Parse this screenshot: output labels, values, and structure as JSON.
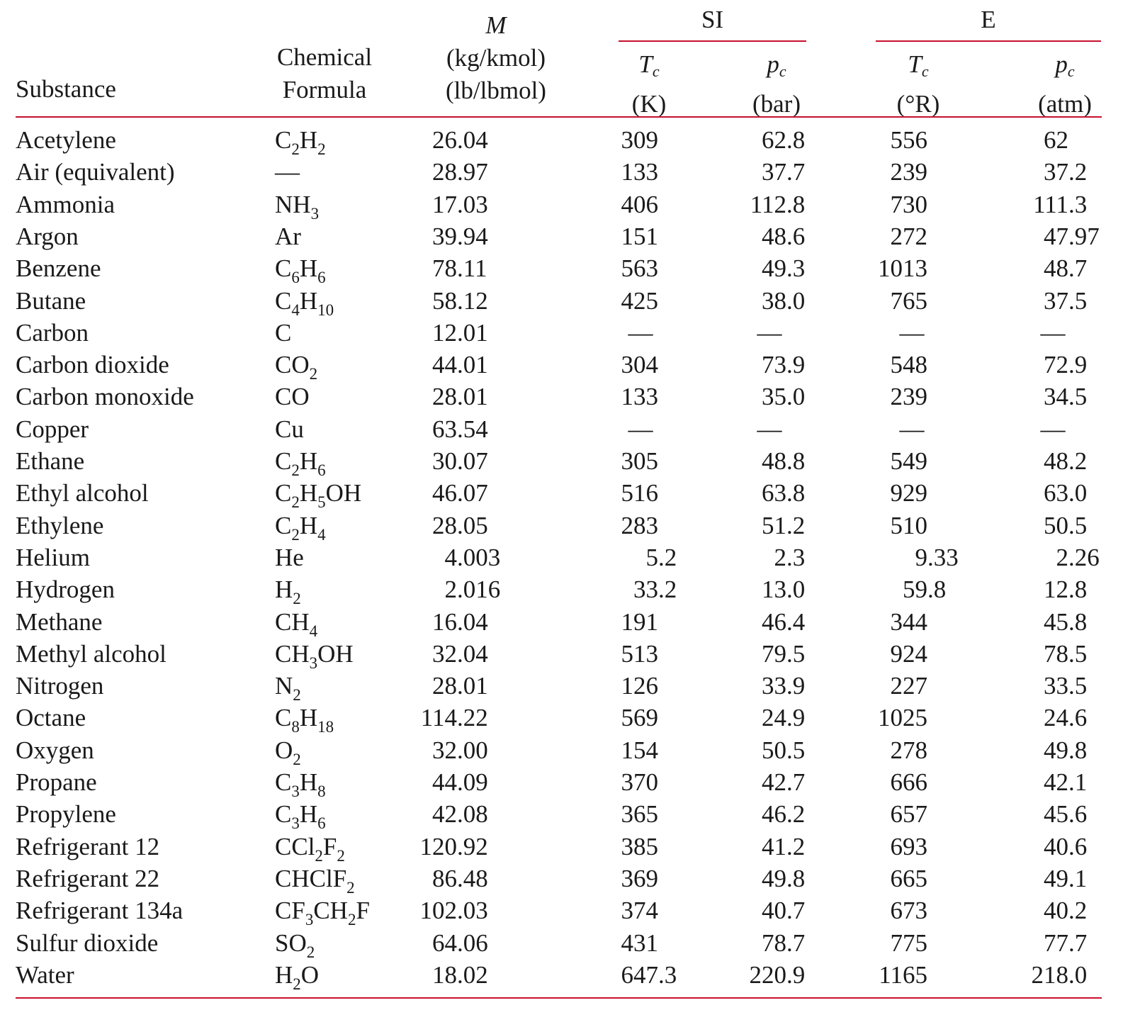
{
  "header": {
    "substance": "Substance",
    "formula_line1": "Chemical",
    "formula_line2": "Formula",
    "molar_symbol": "M",
    "molar_unit_si": "(kg/kmol)",
    "molar_unit_e": "(lb/lbmol)",
    "si_group": "SI",
    "e_group": "E",
    "tc_symbol": "T",
    "tc_sub": "c",
    "pc_symbol": "p",
    "pc_sub": "c",
    "tc_si_unit": "(K)",
    "pc_si_unit": "(bar)",
    "tc_e_unit": "(°R)",
    "pc_e_unit": "(atm)"
  },
  "colors": {
    "rule": "#c8102e",
    "text": "#1a1a1a"
  },
  "rows": [
    {
      "substance": "Acetylene",
      "formula": [
        [
          "C",
          ""
        ],
        [
          "2",
          "s"
        ],
        [
          "H",
          ""
        ],
        [
          "2",
          "s"
        ]
      ],
      "M": "26.04",
      "tc_si": "309",
      "pc_si": "62.8",
      "tc_e": "556",
      "pc_e": "62"
    },
    {
      "substance": "Air (equivalent)",
      "formula": [
        [
          "—",
          ""
        ]
      ],
      "M": "28.97",
      "tc_si": "133",
      "pc_si": "37.7",
      "tc_e": "239",
      "pc_e": "37.2"
    },
    {
      "substance": "Ammonia",
      "formula": [
        [
          "NH",
          ""
        ],
        [
          "3",
          "s"
        ]
      ],
      "M": "17.03",
      "tc_si": "406",
      "pc_si": "112.8",
      "tc_e": "730",
      "pc_e": "111.3"
    },
    {
      "substance": "Argon",
      "formula": [
        [
          "Ar",
          ""
        ]
      ],
      "M": "39.94",
      "tc_si": "151",
      "pc_si": "48.6",
      "tc_e": "272",
      "pc_e": "47.97"
    },
    {
      "substance": "Benzene",
      "formula": [
        [
          "C",
          ""
        ],
        [
          "6",
          "s"
        ],
        [
          "H",
          ""
        ],
        [
          "6",
          "s"
        ]
      ],
      "M": "78.11",
      "tc_si": "563",
      "pc_si": "49.3",
      "tc_e": "1013",
      "pc_e": "48.7"
    },
    {
      "substance": "Butane",
      "formula": [
        [
          "C",
          ""
        ],
        [
          "4",
          "s"
        ],
        [
          "H",
          ""
        ],
        [
          "10",
          "s"
        ]
      ],
      "M": "58.12",
      "tc_si": "425",
      "pc_si": "38.0",
      "tc_e": "765",
      "pc_e": "37.5"
    },
    {
      "substance": "Carbon",
      "formula": [
        [
          "C",
          ""
        ]
      ],
      "M": "12.01",
      "tc_si": "—",
      "pc_si": "—",
      "tc_e": "—",
      "pc_e": "—"
    },
    {
      "substance": "Carbon dioxide",
      "formula": [
        [
          "CO",
          ""
        ],
        [
          "2",
          "s"
        ]
      ],
      "M": "44.01",
      "tc_si": "304",
      "pc_si": "73.9",
      "tc_e": "548",
      "pc_e": "72.9"
    },
    {
      "substance": "Carbon monoxide",
      "formula": [
        [
          "CO",
          ""
        ]
      ],
      "M": "28.01",
      "tc_si": "133",
      "pc_si": "35.0",
      "tc_e": "239",
      "pc_e": "34.5"
    },
    {
      "substance": "Copper",
      "formula": [
        [
          "Cu",
          ""
        ]
      ],
      "M": "63.54",
      "tc_si": "—",
      "pc_si": "—",
      "tc_e": "—",
      "pc_e": "—"
    },
    {
      "substance": "Ethane",
      "formula": [
        [
          "C",
          ""
        ],
        [
          "2",
          "s"
        ],
        [
          "H",
          ""
        ],
        [
          "6",
          "s"
        ]
      ],
      "M": "30.07",
      "tc_si": "305",
      "pc_si": "48.8",
      "tc_e": "549",
      "pc_e": "48.2"
    },
    {
      "substance": "Ethyl alcohol",
      "formula": [
        [
          "C",
          ""
        ],
        [
          "2",
          "s"
        ],
        [
          "H",
          ""
        ],
        [
          "5",
          "s"
        ],
        [
          "OH",
          ""
        ]
      ],
      "M": "46.07",
      "tc_si": "516",
      "pc_si": "63.8",
      "tc_e": "929",
      "pc_e": "63.0"
    },
    {
      "substance": "Ethylene",
      "formula": [
        [
          "C",
          ""
        ],
        [
          "2",
          "s"
        ],
        [
          "H",
          ""
        ],
        [
          "4",
          "s"
        ]
      ],
      "M": "28.05",
      "tc_si": "283",
      "pc_si": "51.2",
      "tc_e": "510",
      "pc_e": "50.5"
    },
    {
      "substance": "Helium",
      "formula": [
        [
          "He",
          ""
        ]
      ],
      "M": "4.003",
      "tc_si": "5.2",
      "pc_si": "2.3",
      "tc_e": "9.33",
      "pc_e": "2.26"
    },
    {
      "substance": "Hydrogen",
      "formula": [
        [
          "H",
          ""
        ],
        [
          "2",
          "s"
        ]
      ],
      "M": "2.016",
      "tc_si": "33.2",
      "pc_si": "13.0",
      "tc_e": "59.8",
      "pc_e": "12.8"
    },
    {
      "substance": "Methane",
      "formula": [
        [
          "CH",
          ""
        ],
        [
          "4",
          "s"
        ]
      ],
      "M": "16.04",
      "tc_si": "191",
      "pc_si": "46.4",
      "tc_e": "344",
      "pc_e": "45.8"
    },
    {
      "substance": "Methyl alcohol",
      "formula": [
        [
          "CH",
          ""
        ],
        [
          "3",
          "s"
        ],
        [
          "OH",
          ""
        ]
      ],
      "M": "32.04",
      "tc_si": "513",
      "pc_si": "79.5",
      "tc_e": "924",
      "pc_e": "78.5"
    },
    {
      "substance": "Nitrogen",
      "formula": [
        [
          "N",
          ""
        ],
        [
          "2",
          "s"
        ]
      ],
      "M": "28.01",
      "tc_si": "126",
      "pc_si": "33.9",
      "tc_e": "227",
      "pc_e": "33.5"
    },
    {
      "substance": "Octane",
      "formula": [
        [
          "C",
          ""
        ],
        [
          "8",
          "s"
        ],
        [
          "H",
          ""
        ],
        [
          "18",
          "s"
        ]
      ],
      "M": "114.22",
      "tc_si": "569",
      "pc_si": "24.9",
      "tc_e": "1025",
      "pc_e": "24.6"
    },
    {
      "substance": "Oxygen",
      "formula": [
        [
          "O",
          ""
        ],
        [
          "2",
          "s"
        ]
      ],
      "M": "32.00",
      "tc_si": "154",
      "pc_si": "50.5",
      "tc_e": "278",
      "pc_e": "49.8"
    },
    {
      "substance": "Propane",
      "formula": [
        [
          "C",
          ""
        ],
        [
          "3",
          "s"
        ],
        [
          "H",
          ""
        ],
        [
          "8",
          "s"
        ]
      ],
      "M": "44.09",
      "tc_si": "370",
      "pc_si": "42.7",
      "tc_e": "666",
      "pc_e": "42.1"
    },
    {
      "substance": "Propylene",
      "formula": [
        [
          "C",
          ""
        ],
        [
          "3",
          "s"
        ],
        [
          "H",
          ""
        ],
        [
          "6",
          "s"
        ]
      ],
      "M": "42.08",
      "tc_si": "365",
      "pc_si": "46.2",
      "tc_e": "657",
      "pc_e": "45.6"
    },
    {
      "substance": "Refrigerant 12",
      "formula": [
        [
          "CCl",
          ""
        ],
        [
          "2",
          "s"
        ],
        [
          "F",
          ""
        ],
        [
          "2",
          "s"
        ]
      ],
      "M": "120.92",
      "tc_si": "385",
      "pc_si": "41.2",
      "tc_e": "693",
      "pc_e": "40.6"
    },
    {
      "substance": "Refrigerant 22",
      "formula": [
        [
          "CHClF",
          ""
        ],
        [
          "2",
          "s"
        ]
      ],
      "M": "86.48",
      "tc_si": "369",
      "pc_si": "49.8",
      "tc_e": "665",
      "pc_e": "49.1"
    },
    {
      "substance": "Refrigerant 134a",
      "formula": [
        [
          "CF",
          ""
        ],
        [
          "3",
          "s"
        ],
        [
          "CH",
          ""
        ],
        [
          "2",
          "s"
        ],
        [
          "F",
          ""
        ]
      ],
      "M": "102.03",
      "tc_si": "374",
      "pc_si": "40.7",
      "tc_e": "673",
      "pc_e": "40.2"
    },
    {
      "substance": "Sulfur dioxide",
      "formula": [
        [
          "SO",
          ""
        ],
        [
          "2",
          "s"
        ]
      ],
      "M": "64.06",
      "tc_si": "431",
      "pc_si": "78.7",
      "tc_e": "775",
      "pc_e": "77.7"
    },
    {
      "substance": "Water",
      "formula": [
        [
          "H",
          ""
        ],
        [
          "2",
          "s"
        ],
        [
          "O",
          ""
        ]
      ],
      "M": "18.02",
      "tc_si": "647.3",
      "pc_si": "220.9",
      "tc_e": "1165",
      "pc_e": "218.0"
    }
  ]
}
